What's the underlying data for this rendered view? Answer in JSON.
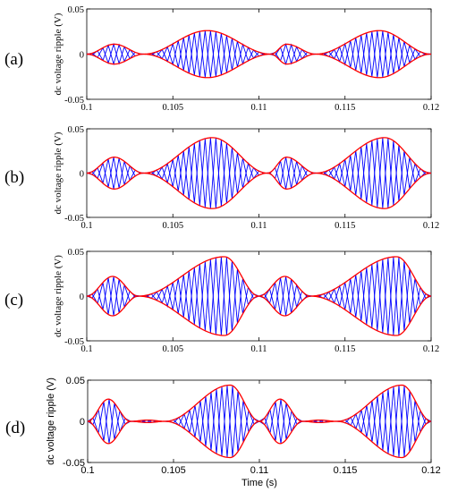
{
  "chart_data": [
    {
      "type": "line",
      "panel_label": "(a)",
      "ylabel": "dc voltage ripple (V)",
      "xlabel": "",
      "xlim": [
        0.1,
        0.12
      ],
      "ylim": [
        -0.05,
        0.05
      ],
      "x_ticks": [
        "0.1",
        "0.105",
        "0.11",
        "0.115",
        "0.12"
      ],
      "y_ticks": [
        "0.05",
        "0",
        "-0.05"
      ],
      "grid": false,
      "series": [
        {
          "color": "#0000ff",
          "style": "ripple",
          "carrier_cycles": 32
        },
        {
          "color": "#ff0000",
          "style": "envelope"
        }
      ],
      "envelope": {
        "x": [
          0.1,
          0.1016,
          0.1033,
          0.107,
          0.1107,
          0.1116,
          0.1133,
          0.117,
          0.12
        ],
        "y": [
          0,
          0.011,
          0,
          0.026,
          0,
          0.011,
          0,
          0.026,
          0
        ]
      }
    },
    {
      "type": "line",
      "panel_label": "(b)",
      "ylabel": "dc voltage ripple (V)",
      "xlabel": "",
      "xlim": [
        0.1,
        0.12
      ],
      "ylim": [
        -0.05,
        0.05
      ],
      "x_ticks": [
        "0.1",
        "0.105",
        "0.11",
        "0.115",
        "0.12"
      ],
      "y_ticks": [
        "0.05",
        "0",
        "-0.05"
      ],
      "grid": false,
      "series": [
        {
          "color": "#0000ff",
          "style": "ripple",
          "carrier_cycles": 32
        },
        {
          "color": "#ff0000",
          "style": "envelope"
        }
      ],
      "envelope": {
        "x": [
          0.1,
          0.1016,
          0.1033,
          0.1073,
          0.1105,
          0.1116,
          0.1133,
          0.1173,
          0.12
        ],
        "y": [
          0,
          0.018,
          0,
          0.04,
          0,
          0.018,
          0,
          0.04,
          0
        ]
      }
    },
    {
      "type": "line",
      "panel_label": "(c)",
      "ylabel": "dc voltage ripple (V)",
      "xlabel": "",
      "xlim": [
        0.1,
        0.12
      ],
      "ylim": [
        -0.05,
        0.05
      ],
      "x_ticks": [
        "0.1",
        "0.105",
        "0.11",
        "0.115",
        "0.12"
      ],
      "y_ticks": [
        "0.05",
        "0",
        "-0.05"
      ],
      "grid": false,
      "series": [
        {
          "color": "#0000ff",
          "style": "ripple",
          "carrier_cycles": 32
        },
        {
          "color": "#ff0000",
          "style": "envelope"
        }
      ],
      "envelope": {
        "x": [
          0.1,
          0.1015,
          0.103,
          0.108,
          0.11,
          0.1115,
          0.113,
          0.118,
          0.12
        ],
        "y": [
          0,
          0.022,
          0,
          0.044,
          0,
          0.022,
          0,
          0.044,
          0
        ]
      }
    },
    {
      "type": "line",
      "panel_label": "(d)",
      "ylabel": "dc voltage ripple (V)",
      "xlabel": "Time (s)",
      "xlim": [
        0.1,
        0.12
      ],
      "ylim": [
        -0.05,
        0.05
      ],
      "x_ticks": [
        "0.1",
        "0.105",
        "0.11",
        "0.115",
        "0.12"
      ],
      "y_ticks": [
        "0.05",
        "0",
        "-0.05"
      ],
      "grid": false,
      "series": [
        {
          "color": "#0000ff",
          "style": "ripple",
          "carrier_cycles": 32
        },
        {
          "color": "#ff0000",
          "style": "envelope"
        }
      ],
      "envelope": {
        "x": [
          0.1,
          0.1012,
          0.1025,
          0.1035,
          0.1045,
          0.1083,
          0.11,
          0.1112,
          0.1125,
          0.1135,
          0.1145,
          0.1183,
          0.12
        ],
        "y": [
          0,
          0.027,
          0,
          0.0015,
          0,
          0.044,
          0,
          0.027,
          0,
          0.0015,
          0,
          0.044,
          0
        ]
      }
    }
  ]
}
